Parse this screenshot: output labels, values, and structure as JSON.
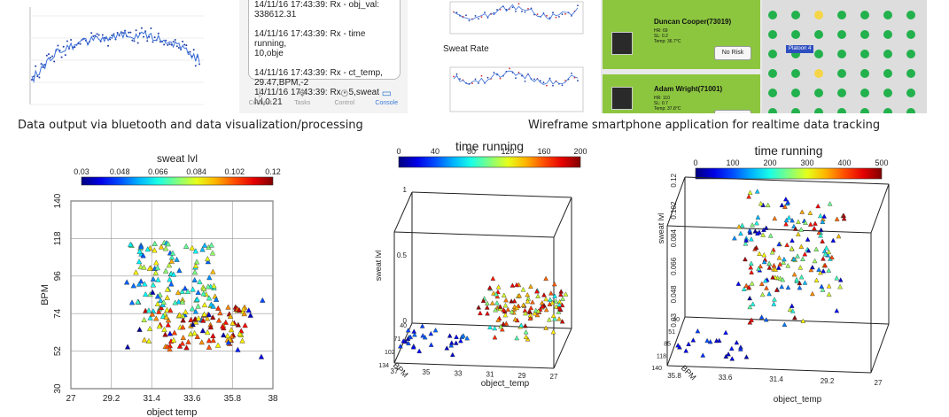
{
  "top": {
    "caption_left": "Data output via bluetooth and data visualization/processing",
    "caption_right": "Wireframe smartphone application for realtime data tracking",
    "console": {
      "lines": [
        "14/11/16 17:43:39: Rx - obj_val:\n338612.31",
        "14/11/16 17:43:39: Rx - time running,\n10,obje",
        "14/11/16 17:43:39: Rx - ct_temp,\n29.47,BPM,-2\n14/11/16 17:43:39: Rx - 5,sweat lvl,0.21"
      ],
      "tabs": [
        {
          "label": "Connect",
          "icon": "bluetooth-icon"
        },
        {
          "label": "Tasks",
          "icon": "tasks-icon"
        },
        {
          "label": "Control",
          "icon": "gamepad-icon"
        },
        {
          "label": "Console",
          "icon": "console-icon"
        }
      ],
      "active_tab": "Console"
    },
    "app": {
      "left_label": "Sweat Rate",
      "cards": [
        {
          "name": "Duncan Cooper(73019)",
          "hr": "HR: 69",
          "sl": "SL: 0.2",
          "temp": "Temp: 36.7°C",
          "status": "No Risk"
        },
        {
          "name": "Adam Wright(71001)",
          "hr": "HR: 110",
          "sl": "SL: 0.7",
          "temp": "Temp: 37.8°C",
          "status": ""
        }
      ],
      "platoon_label": "Platoon 4"
    }
  },
  "colors": {
    "card_green": "#8cc63f",
    "dot_green": "#22b14c",
    "dot_yellow": "#f5d547"
  },
  "chart_data": [
    {
      "type": "scatter",
      "id": "chart-2d",
      "xlabel": "object temp",
      "ylabel": "BPM",
      "xlim": [
        27,
        38
      ],
      "ylim": [
        30,
        140
      ],
      "xticks": [
        "27",
        "29.2",
        "31.4",
        "33.6",
        "35.8",
        "38"
      ],
      "yticks": [
        "30",
        "52",
        "74",
        "96",
        "118",
        "140"
      ],
      "grid": true,
      "marker": "triangle",
      "colorbar": {
        "label": "sweat lvl",
        "min": 0.03,
        "max": 0.12,
        "ticks": [
          "0.03",
          "0.048",
          "0.066",
          "0.084",
          "0.102",
          "0.12"
        ]
      }
    },
    {
      "type": "scatter",
      "id": "chart-3d-a",
      "projection": "3d",
      "xlabel": "object_temp",
      "ylabel": "BPM",
      "zlabel": "sweat lvl",
      "xticks": [
        "37",
        "35",
        "33",
        "31",
        "29",
        "27"
      ],
      "yticks": [
        "40",
        "71",
        "102",
        "134"
      ],
      "zticks": [
        "0",
        "0.5",
        "1"
      ],
      "colorbar": {
        "label": "time running",
        "min": 0,
        "max": 200,
        "ticks": [
          "0",
          "40",
          "80",
          "120",
          "160",
          "200"
        ]
      }
    },
    {
      "type": "scatter",
      "id": "chart-3d-b",
      "projection": "3d",
      "xlabel": "object_temp",
      "ylabel": "BPM",
      "zlabel": "sweat lvl",
      "xticks": [
        "35.8",
        "33.6",
        "31.4",
        "29.2",
        "27"
      ],
      "yticks": [
        "40",
        "51",
        "85",
        "118",
        "140"
      ],
      "zticks": [
        "0.03",
        "0.048",
        "0.066",
        "0.084",
        "0.102",
        "0.12"
      ],
      "colorbar": {
        "label": "time running",
        "min": 0,
        "max": 500,
        "ticks": [
          "0",
          "100",
          "200",
          "300",
          "400",
          "500"
        ]
      }
    }
  ]
}
